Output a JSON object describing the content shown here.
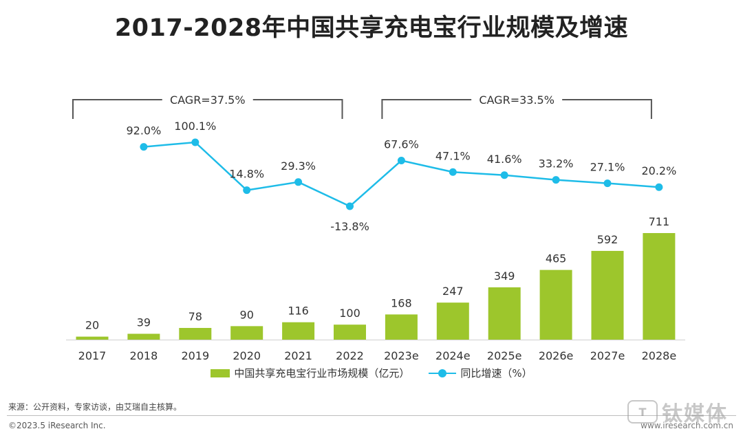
{
  "title": "2017-2028年中国共享充电宝行业规模及增速",
  "chart_data": {
    "type": "bar",
    "categories": [
      "2017",
      "2018",
      "2019",
      "2020",
      "2021",
      "2022",
      "2023e",
      "2024e",
      "2025e",
      "2026e",
      "2027e",
      "2028e"
    ],
    "series": [
      {
        "name": "中国共享充电宝行业市场规模（亿元）",
        "type": "bar",
        "color": "#9DC62C",
        "values": [
          20,
          39,
          78,
          90,
          116,
          100,
          168,
          247,
          349,
          465,
          592,
          711
        ],
        "labels": [
          "20",
          "39",
          "78",
          "90",
          "116",
          "100",
          "168",
          "247",
          "349",
          "465",
          "592",
          "711"
        ]
      },
      {
        "name": "同比增速（%）",
        "type": "line",
        "color": "#1EBCE8",
        "values": [
          null,
          92.0,
          100.1,
          14.8,
          29.3,
          -13.8,
          67.6,
          47.1,
          41.6,
          33.2,
          27.1,
          20.2
        ],
        "labels": [
          null,
          "92.0%",
          "100.1%",
          "14.8%",
          "29.3%",
          "-13.8%",
          "67.6%",
          "47.1%",
          "41.6%",
          "33.2%",
          "27.1%",
          "20.2%"
        ]
      }
    ],
    "bar_ylim": [
      0,
      800
    ],
    "line_ylim": [
      -20,
      110
    ],
    "annotations": [
      {
        "text": "CAGR=37.5%",
        "from": "2017",
        "to": "2022"
      },
      {
        "text": "CAGR=33.5%",
        "from": "2023e",
        "to": "2028e"
      }
    ],
    "legend_position": "bottom"
  },
  "legend": {
    "bar_label": "中国共享充电宝行业市场规模（亿元）",
    "line_label": "同比增速（%）"
  },
  "footer": {
    "source": "来源：公开资料，专家访谈，由艾瑞自主核算。",
    "copyright": "©2023.5 iResearch Inc.",
    "site": "www.iresearch.com.cn",
    "watermark_text": "钛媒体",
    "watermark_logo": "T"
  }
}
